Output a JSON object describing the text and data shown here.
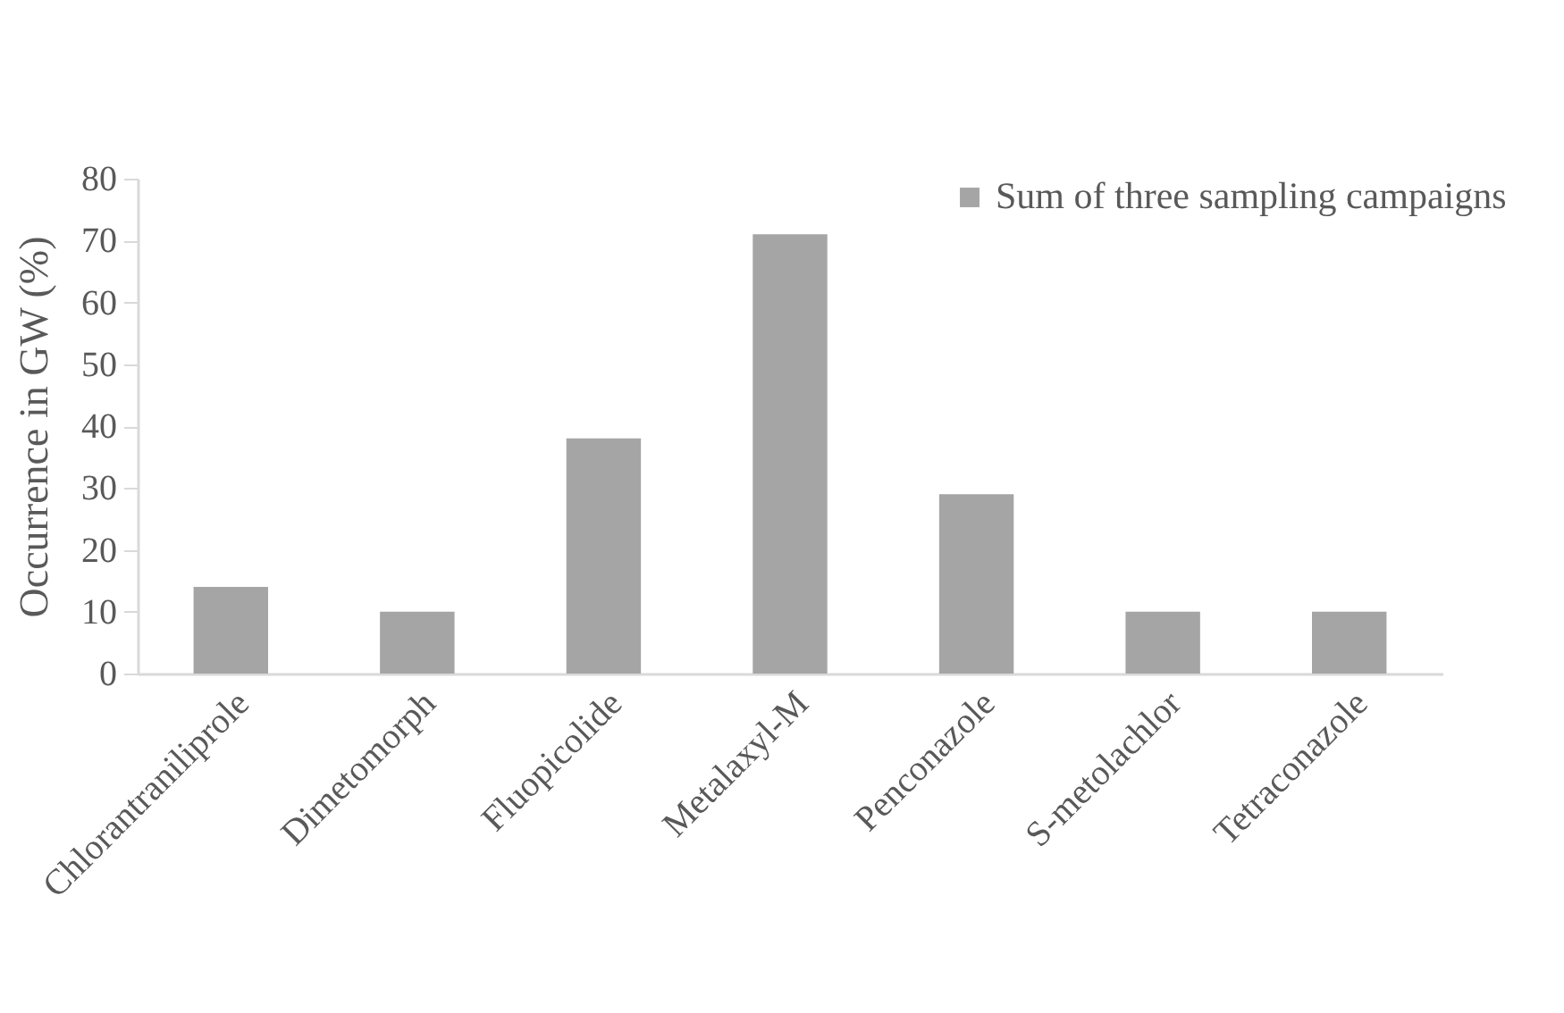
{
  "chart_data": {
    "type": "bar",
    "ylabel": "Occurrence  in GW (%)",
    "categories": [
      "Chlorantraniliprole",
      "Dimetomorph",
      "Fluopicolide",
      "Metalaxyl-M",
      "Penconazole",
      "S-metolachlor",
      "Tetraconazole"
    ],
    "series": [
      {
        "name": "Sum of three sampling campaigns",
        "color": "#a5a5a5",
        "values": [
          14,
          10,
          38,
          71,
          29,
          10,
          10
        ]
      }
    ],
    "ylim": [
      0,
      80
    ],
    "yticks": [
      0,
      10,
      20,
      30,
      40,
      50,
      60,
      70,
      80
    ],
    "grid": false,
    "legend": "top right"
  }
}
